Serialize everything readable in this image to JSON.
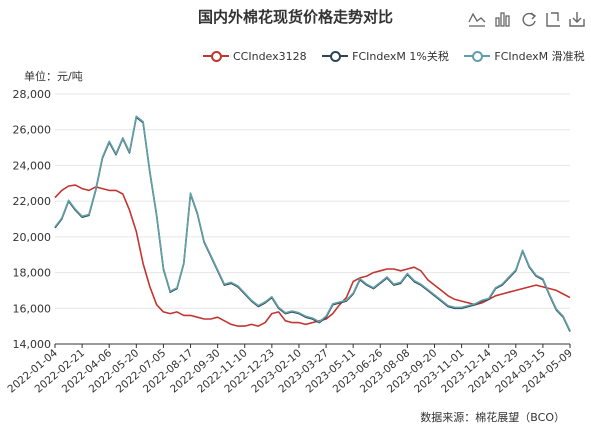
{
  "title": "国内外棉花现货价格走势对比",
  "unit_label": "单位：元/吨",
  "source": "数据来源：棉花展望（BCO）",
  "toolbox": [
    {
      "name": "line-chart-icon"
    },
    {
      "name": "bar-chart-icon"
    },
    {
      "name": "refresh-icon"
    },
    {
      "name": "data-view-icon"
    },
    {
      "name": "save-image-icon"
    }
  ],
  "chart_data": {
    "type": "line",
    "x_ticks": [
      "2022-01-04",
      "2022-02-21",
      "2022-04-06",
      "2022-05-20",
      "2022-07-05",
      "2022-08-17",
      "2022-09-30",
      "2022-11-10",
      "2022-12-23",
      "2023-02-10",
      "2023-03-27",
      "2023-05-11",
      "2023-06-26",
      "2023-08-08",
      "2023-09-20",
      "2023-11-01",
      "2023-12-14",
      "2024-01-29",
      "2024-03-15",
      "2024-05-09"
    ],
    "ylim": [
      14000,
      28000
    ],
    "y_ticks": [
      "14,000",
      "16,000",
      "18,000",
      "20,000",
      "22,000",
      "24,000",
      "26,000",
      "28,000"
    ],
    "grid": true,
    "legend_position": "top",
    "series": [
      {
        "name": "CCIndex3128",
        "color": "#c23531",
        "values": [
          22200,
          22600,
          22850,
          22900,
          22700,
          22600,
          22800,
          22700,
          22600,
          22600,
          22400,
          21500,
          20300,
          18500,
          17200,
          16200,
          15800,
          15700,
          15800,
          15600,
          15600,
          15500,
          15400,
          15400,
          15500,
          15300,
          15100,
          15000,
          15000,
          15100,
          15000,
          15200,
          15700,
          15800,
          15300,
          15200,
          15200,
          15100,
          15200,
          15300,
          15400,
          15700,
          16200,
          16600,
          17500,
          17700,
          17800,
          18000,
          18100,
          18200,
          18200,
          18100,
          18200,
          18300,
          18100,
          17600,
          17300,
          17000,
          16700,
          16500,
          16400,
          16300,
          16200,
          16300,
          16500,
          16700,
          16800,
          16900,
          17000,
          17100,
          17200,
          17300,
          17200,
          17100,
          17000,
          16800,
          16600
        ]
      },
      {
        "name": "FCIndexM 1%关税",
        "color": "#2f4554",
        "values": [
          20500,
          21000,
          22000,
          21500,
          21100,
          21200,
          22600,
          24400,
          25300,
          24600,
          25500,
          24700,
          26700,
          26400,
          23600,
          21200,
          18200,
          16900,
          17100,
          18500,
          22400,
          21300,
          19700,
          18900,
          18100,
          17300,
          17400,
          17200,
          16800,
          16400,
          16100,
          16300,
          16600,
          16000,
          15700,
          15800,
          15700,
          15500,
          15400,
          15200,
          15500,
          16200,
          16300,
          16400,
          16800,
          17600,
          17300,
          17100,
          17400,
          17700,
          17300,
          17400,
          17900,
          17500,
          17300,
          17000,
          16700,
          16400,
          16100,
          16000,
          16000,
          16100,
          16200,
          16400,
          16500,
          17100,
          17300,
          17700,
          18100,
          19200,
          18300,
          17800,
          17600,
          16700,
          15900,
          15500,
          14700
        ]
      },
      {
        "name": "FCIndexM 滑准税",
        "color": "#61a0a8",
        "values": [
          20550,
          21050,
          22050,
          21550,
          21150,
          21250,
          22650,
          24450,
          25350,
          24650,
          25550,
          24750,
          26750,
          26450,
          23650,
          21250,
          18250,
          16950,
          17150,
          18550,
          22450,
          21350,
          19750,
          18950,
          18150,
          17350,
          17450,
          17250,
          16850,
          16450,
          16150,
          16350,
          16650,
          16050,
          15750,
          15850,
          15750,
          15550,
          15450,
          15250,
          15550,
          16250,
          16350,
          16450,
          16850,
          17650,
          17350,
          17150,
          17450,
          17750,
          17350,
          17450,
          17950,
          17550,
          17350,
          17050,
          16750,
          16450,
          16150,
          16050,
          16050,
          16150,
          16250,
          16450,
          16550,
          17150,
          17350,
          17750,
          18150,
          19250,
          18350,
          17850,
          17650,
          16750,
          15950,
          15550,
          14750
        ]
      }
    ]
  }
}
